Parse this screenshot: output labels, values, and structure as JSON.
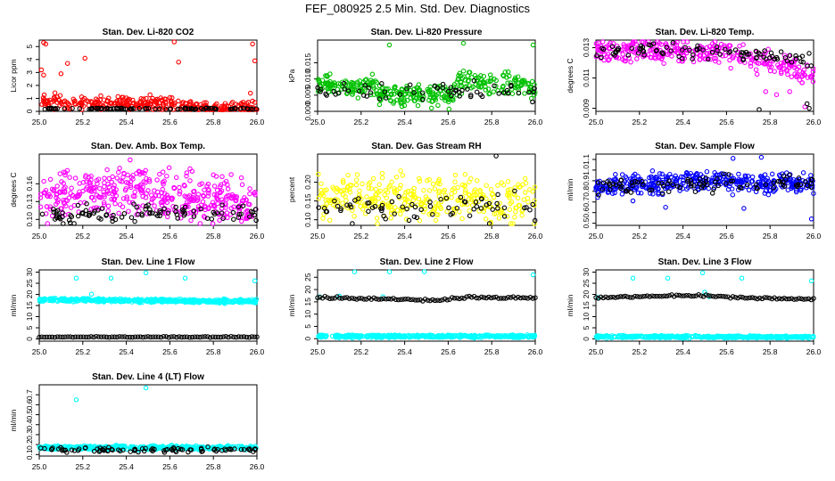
{
  "figure_title": "FEF_080925  2.5 Min. Std. Dev. Diagnostics",
  "chart_data": [
    {
      "type": "scatter",
      "title": "Stan. Dev. Li-820 CO2",
      "ylabel": "Licor ppm",
      "xlim": [
        25.0,
        26.0
      ],
      "ylim": [
        0,
        5.5
      ],
      "yticks": [
        0,
        1,
        2,
        3,
        4,
        5
      ],
      "ytick_labels": [
        "0",
        "1",
        "2",
        "3",
        "4",
        "5"
      ],
      "xticks": [
        25.0,
        25.2,
        25.4,
        25.6,
        25.8,
        26.0
      ],
      "xtick_labels": [
        "25.0",
        "25.2",
        "25.4",
        "25.6",
        "25.8",
        "26.0"
      ],
      "seed": 11,
      "series": [
        {
          "name": "main",
          "color": "#ff0000",
          "n": 320,
          "mode": "noise",
          "base": [
            [
              25.0,
              0.7
            ],
            [
              25.6,
              0.6
            ],
            [
              25.65,
              0.25
            ],
            [
              26.0,
              0.25
            ]
          ],
          "spread": 0.4,
          "outliers": [
            [
              25.02,
              5.3
            ],
            [
              25.03,
              5.2
            ],
            [
              25.01,
              3.2
            ],
            [
              25.13,
              3.7
            ],
            [
              25.21,
              4.1
            ],
            [
              25.02,
              2.8
            ],
            [
              25.1,
              2.9
            ],
            [
              25.62,
              5.4
            ],
            [
              25.64,
              3.8
            ],
            [
              25.98,
              5.2
            ],
            [
              25.99,
              3.9
            ],
            [
              25.97,
              1.4
            ]
          ]
        },
        {
          "name": "alt",
          "color": "#000000",
          "n": 90,
          "mode": "noise",
          "base": [
            [
              25.0,
              0.2
            ],
            [
              26.0,
              0.2
            ]
          ],
          "spread": 0.05
        }
      ]
    },
    {
      "type": "scatter",
      "title": "Stan. Dev. Li-820 Pressure",
      "ylabel": "kPa",
      "xlim": [
        25.0,
        26.0
      ],
      "ylim": [
        0,
        0.022
      ],
      "yticks": [
        0,
        0.005,
        0.01,
        0.015
      ],
      "ytick_labels": [
        "0.000",
        "0.005",
        "0.010",
        "0.015"
      ],
      "xticks": [
        25.0,
        25.2,
        25.4,
        25.6,
        25.8,
        26.0
      ],
      "xtick_labels": [
        "25.0",
        "25.2",
        "25.4",
        "25.6",
        "25.8",
        "26.0"
      ],
      "seed": 22,
      "series": [
        {
          "name": "main",
          "color": "#00c000",
          "n": 360,
          "mode": "noise",
          "base": [
            [
              25.0,
              0.008
            ],
            [
              25.25,
              0.008
            ],
            [
              25.3,
              0.005
            ],
            [
              25.62,
              0.005
            ],
            [
              25.65,
              0.009
            ],
            [
              25.9,
              0.009
            ],
            [
              26.0,
              0.006
            ]
          ],
          "spread": 0.0025,
          "outliers": [
            [
              25.33,
              0.0205
            ],
            [
              25.67,
              0.021
            ],
            [
              25.99,
              0.0205
            ]
          ]
        },
        {
          "name": "alt",
          "color": "#000000",
          "n": 60,
          "mode": "noise",
          "base": [
            [
              25.0,
              0.007
            ],
            [
              26.0,
              0.006
            ]
          ],
          "spread": 0.002
        }
      ]
    },
    {
      "type": "scatter",
      "title": "Stan. Dev. Li-820 Temp.",
      "ylabel": "degrees C",
      "xlim": [
        25.0,
        26.0
      ],
      "ylim": [
        0.0088,
        0.0135
      ],
      "yticks": [
        0.009,
        0.011,
        0.013
      ],
      "ytick_labels": [
        "0.009",
        "0.011",
        "0.013"
      ],
      "xticks": [
        25.0,
        25.2,
        25.4,
        25.6,
        25.8,
        26.0
      ],
      "xtick_labels": [
        "25.0",
        "25.2",
        "25.4",
        "25.6",
        "25.8",
        "26.0"
      ],
      "seed": 33,
      "series": [
        {
          "name": "main",
          "color": "#ff00ff",
          "n": 320,
          "mode": "noise",
          "base": [
            [
              25.0,
              0.0128
            ],
            [
              25.6,
              0.0127
            ],
            [
              25.75,
              0.0122
            ],
            [
              26.0,
              0.0112
            ]
          ],
          "spread": 0.0006,
          "outliers": [
            [
              25.18,
              0.0134
            ],
            [
              25.78,
              0.0101
            ],
            [
              25.83,
              0.0099
            ],
            [
              25.96,
              0.0091
            ],
            [
              25.89,
              0.0101
            ]
          ]
        },
        {
          "name": "alt",
          "color": "#000000",
          "n": 90,
          "mode": "noise",
          "base": [
            [
              25.0,
              0.0128
            ],
            [
              25.6,
              0.0128
            ],
            [
              26.0,
              0.012
            ]
          ],
          "spread": 0.0004,
          "outliers": [
            [
              25.75,
              0.0089
            ],
            [
              25.98,
              0.009
            ],
            [
              25.97,
              0.0093
            ]
          ]
        }
      ]
    },
    {
      "type": "scatter",
      "title": "Stan. Dev. Amb. Box Temp.",
      "ylabel": "degrees C",
      "xlim": [
        25.0,
        26.0
      ],
      "ylim": [
        0.09,
        0.21
      ],
      "yticks": [
        0.1,
        0.13,
        0.16
      ],
      "ytick_labels": [
        "0.10",
        "0.13",
        "0.16"
      ],
      "xticks": [
        25.0,
        25.2,
        25.4,
        25.6,
        25.8,
        26.0
      ],
      "xtick_labels": [
        "25.0",
        "25.2",
        "25.4",
        "25.6",
        "25.8",
        "26.0"
      ],
      "seed": 44,
      "series": [
        {
          "name": "main",
          "color": "#ff00ff",
          "n": 420,
          "mode": "noise",
          "base": [
            [
              25.0,
              0.135
            ],
            [
              25.4,
              0.155
            ],
            [
              25.6,
              0.14
            ],
            [
              26.0,
              0.125
            ]
          ],
          "spread": 0.03
        },
        {
          "name": "alt",
          "color": "#000000",
          "n": 100,
          "mode": "noise",
          "base": [
            [
              25.0,
              0.11
            ],
            [
              26.0,
              0.11
            ]
          ],
          "spread": 0.012
        }
      ]
    },
    {
      "type": "scatter",
      "title": "Stan. Dev. Gas Stream RH",
      "ylabel": "percent",
      "xlim": [
        25.0,
        26.0
      ],
      "ylim": [
        0.085,
        0.275
      ],
      "yticks": [
        0.1,
        0.15,
        0.2
      ],
      "ytick_labels": [
        "0.10",
        "0.15",
        "0.20"
      ],
      "xticks": [
        25.0,
        25.2,
        25.4,
        25.6,
        25.8,
        26.0
      ],
      "xtick_labels": [
        "25.0",
        "25.2",
        "25.4",
        "25.6",
        "25.8",
        "26.0"
      ],
      "seed": 55,
      "series": [
        {
          "name": "main",
          "color": "#ffff00",
          "n": 340,
          "mode": "noise",
          "base": [
            [
              25.0,
              0.16
            ],
            [
              26.0,
              0.15
            ]
          ],
          "spread": 0.045
        },
        {
          "name": "alt",
          "color": "#000000",
          "n": 70,
          "mode": "noise",
          "base": [
            [
              25.0,
              0.13
            ],
            [
              26.0,
              0.13
            ]
          ],
          "spread": 0.03,
          "outliers": [
            [
              25.82,
              0.27
            ]
          ]
        }
      ]
    },
    {
      "type": "scatter",
      "title": "Stan. Dev. Sample Flow",
      "ylabel": "ml/min",
      "xlim": [
        25.0,
        26.0
      ],
      "ylim": [
        0.48,
        1.15
      ],
      "yticks": [
        0.5,
        0.6,
        0.7,
        0.8,
        0.9,
        1.0,
        1.1
      ],
      "ytick_labels": [
        "0.5",
        "0.6",
        "0.7",
        "0.8",
        "0.9",
        "1.0",
        "1.1"
      ],
      "xticks": [
        25.0,
        25.2,
        25.4,
        25.6,
        25.8,
        26.0
      ],
      "xtick_labels": [
        "25.0",
        "25.2",
        "25.4",
        "25.6",
        "25.8",
        "26.0"
      ],
      "seed": 66,
      "series": [
        {
          "name": "main",
          "color": "#0000ff",
          "n": 380,
          "mode": "noise",
          "base": [
            [
              25.0,
              0.85
            ],
            [
              25.5,
              0.9
            ],
            [
              26.0,
              0.87
            ]
          ],
          "spread": 0.07,
          "outliers": [
            [
              25.76,
              1.12
            ],
            [
              25.63,
              1.11
            ],
            [
              25.32,
              0.65
            ],
            [
              25.99,
              0.54
            ],
            [
              25.68,
              0.64
            ],
            [
              25.17,
              0.71
            ]
          ]
        },
        {
          "name": "alt",
          "color": "#000000",
          "n": 90,
          "mode": "noise",
          "base": [
            [
              25.0,
              0.86
            ],
            [
              26.0,
              0.88
            ]
          ],
          "spread": 0.06
        }
      ]
    },
    {
      "type": "scatter",
      "title": "Stan. Dev. Line 1 Flow",
      "ylabel": "ml/min",
      "xlim": [
        25.0,
        26.0
      ],
      "ylim": [
        -1,
        31
      ],
      "yticks": [
        0,
        5,
        10,
        15,
        20,
        25,
        30
      ],
      "ytick_labels": [
        "0",
        "5",
        "10",
        "15",
        "20",
        "25",
        "30"
      ],
      "xticks": [
        25.0,
        25.2,
        25.4,
        25.6,
        25.8,
        26.0
      ],
      "xtick_labels": [
        "25.0",
        "25.2",
        "25.4",
        "25.6",
        "25.8",
        "26.0"
      ],
      "seed": 77,
      "series": [
        {
          "name": "main",
          "color": "#00ffff",
          "n": 420,
          "mode": "noise",
          "base": [
            [
              25.0,
              17.6
            ],
            [
              26.0,
              16.8
            ]
          ],
          "spread": 0.6,
          "outliers": [
            [
              25.17,
              27.3
            ],
            [
              25.33,
              27.3
            ],
            [
              25.49,
              29.7
            ],
            [
              25.67,
              27.3
            ],
            [
              25.99,
              26.1
            ],
            [
              25.24,
              20.1
            ]
          ]
        },
        {
          "name": "alt",
          "color": "#000000",
          "n": 85,
          "mode": "line",
          "base": [
            [
              25.0,
              0.9
            ],
            [
              26.0,
              0.9
            ]
          ],
          "spread": 0.15
        }
      ]
    },
    {
      "type": "scatter",
      "title": "Stan. Dev. Line 2 Flow",
      "ylabel": "ml/min",
      "xlim": [
        25.0,
        26.0
      ],
      "ylim": [
        -1,
        28
      ],
      "yticks": [
        0,
        5,
        10,
        15,
        20,
        25
      ],
      "ytick_labels": [
        "0",
        "5",
        "10",
        "15",
        "20",
        "25"
      ],
      "xticks": [
        25.0,
        25.2,
        25.4,
        25.6,
        25.8,
        26.0
      ],
      "xtick_labels": [
        "25.0",
        "25.2",
        "25.4",
        "25.6",
        "25.8",
        "26.0"
      ],
      "seed": 88,
      "series": [
        {
          "name": "main",
          "color": "#00ffff",
          "n": 420,
          "mode": "noise",
          "base": [
            [
              25.0,
              1.0
            ],
            [
              26.0,
              0.9
            ]
          ],
          "spread": 0.4,
          "outliers": [
            [
              25.17,
              27.2
            ],
            [
              25.33,
              27.2
            ],
            [
              25.49,
              28.3
            ],
            [
              25.99,
              26.0
            ],
            [
              25.01,
              17.0
            ],
            [
              25.1,
              17.3
            ],
            [
              25.3,
              17.1
            ]
          ]
        },
        {
          "name": "alt",
          "color": "#000000",
          "n": 90,
          "mode": "line",
          "base": [
            [
              25.0,
              16.8
            ],
            [
              25.45,
              15.8
            ],
            [
              25.55,
              15.6
            ],
            [
              25.65,
              16.8
            ],
            [
              26.0,
              16.6
            ]
          ],
          "spread": 0.35
        }
      ]
    },
    {
      "type": "scatter",
      "title": "Stan. Dev. Line 3 Flow",
      "ylabel": "ml/min",
      "xlim": [
        25.0,
        26.0
      ],
      "ylim": [
        -1,
        31
      ],
      "yticks": [
        0,
        5,
        10,
        15,
        20,
        25,
        30
      ],
      "ytick_labels": [
        "0",
        "5",
        "10",
        "15",
        "20",
        "25",
        "30"
      ],
      "xticks": [
        25.0,
        25.2,
        25.4,
        25.6,
        25.8,
        26.0
      ],
      "xtick_labels": [
        "25.0",
        "25.2",
        "25.4",
        "25.6",
        "25.8",
        "26.0"
      ],
      "seed": 99,
      "series": [
        {
          "name": "main",
          "color": "#00ffff",
          "n": 420,
          "mode": "noise",
          "base": [
            [
              25.0,
              1.0
            ],
            [
              26.0,
              0.9
            ]
          ],
          "spread": 0.4,
          "outliers": [
            [
              25.17,
              27.3
            ],
            [
              25.33,
              27.3
            ],
            [
              25.49,
              29.7
            ],
            [
              25.67,
              27.3
            ],
            [
              25.99,
              26.1
            ],
            [
              25.01,
              18.6
            ],
            [
              25.5,
              21.0
            ],
            [
              25.52,
              19.0
            ]
          ]
        },
        {
          "name": "alt",
          "color": "#000000",
          "n": 90,
          "mode": "line",
          "base": [
            [
              25.0,
              18.6
            ],
            [
              25.5,
              19.6
            ],
            [
              25.65,
              18.6
            ],
            [
              26.0,
              17.8
            ]
          ],
          "spread": 0.35
        }
      ]
    },
    {
      "type": "scatter",
      "title": "Stan. Dev. Line 4 (LT) Flow",
      "ylabel": "ml/min",
      "xlim": [
        25.0,
        26.0
      ],
      "ylim": [
        0.085,
        0.8
      ],
      "yticks": [
        0.1,
        0.2,
        0.3,
        0.4,
        0.5,
        0.6,
        0.7
      ],
      "ytick_labels": [
        "0.1",
        "0.2",
        "0.3",
        "0.4",
        "0.5",
        "0.6",
        "0.7"
      ],
      "xticks": [
        25.0,
        25.2,
        25.4,
        25.6,
        25.8,
        26.0
      ],
      "xtick_labels": [
        "25.0",
        "25.2",
        "25.4",
        "25.6",
        "25.8",
        "26.0"
      ],
      "seed": 111,
      "series": [
        {
          "name": "main",
          "color": "#00ffff",
          "n": 420,
          "mode": "noise",
          "base": [
            [
              25.0,
              0.17
            ],
            [
              26.0,
              0.17
            ]
          ],
          "spread": 0.015,
          "outliers": [
            [
              25.17,
              0.65
            ],
            [
              25.49,
              0.77
            ]
          ]
        },
        {
          "name": "alt",
          "color": "#000000",
          "n": 90,
          "mode": "noise",
          "base": [
            [
              25.0,
              0.15
            ],
            [
              26.0,
              0.15
            ]
          ],
          "spread": 0.02
        }
      ]
    }
  ]
}
